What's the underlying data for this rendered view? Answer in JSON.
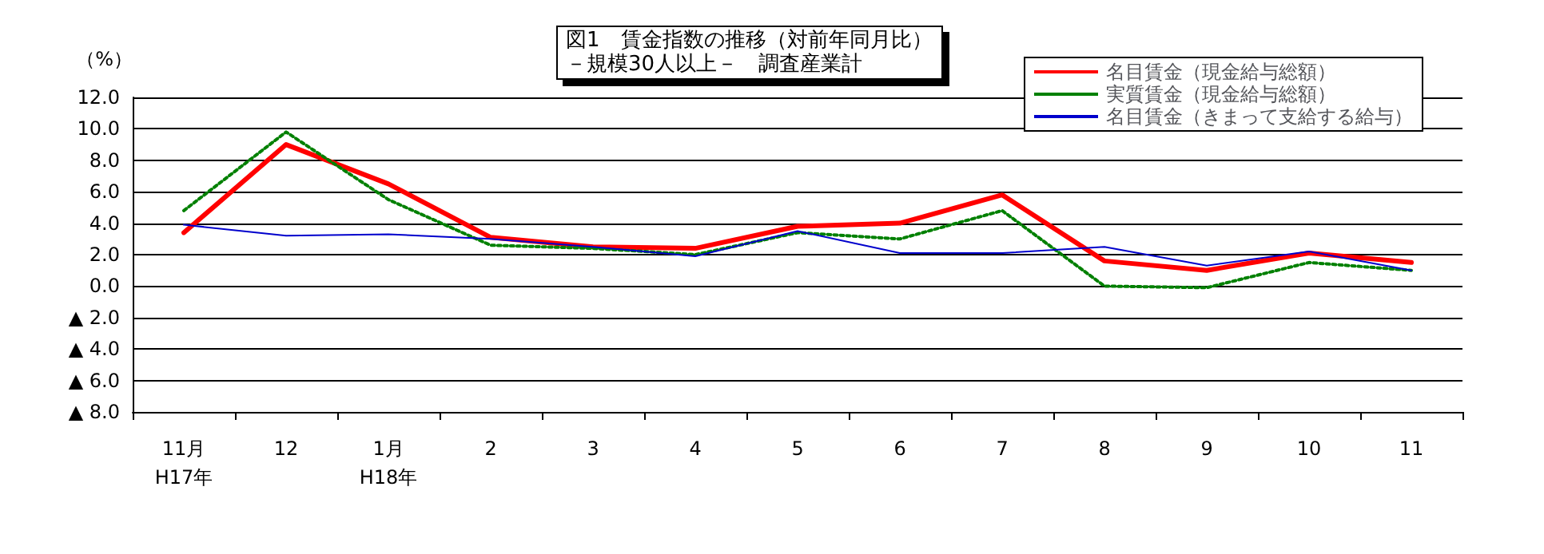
{
  "chart_data": {
    "type": "line",
    "title": "図1　賃金指数の推移（対前年同月比）",
    "subtitle": "－規模30人以上－　調査産業計",
    "ylabel": "（%）",
    "categories": [
      "11月\nH17年",
      "12",
      "1月\nH18年",
      "2",
      "3",
      "4",
      "5",
      "6",
      "7",
      "8",
      "9",
      "10",
      "11"
    ],
    "series": [
      {
        "name": "名目賃金（現金給与総額）",
        "color": "#ff0000",
        "line_style": "solid",
        "values": [
          3.4,
          9.0,
          6.5,
          3.1,
          2.5,
          2.4,
          3.8,
          4.0,
          5.8,
          1.6,
          1.0,
          2.1,
          1.5
        ]
      },
      {
        "name": "実質賃金（現金給与総額）",
        "color": "#008000",
        "line_style": "dotted",
        "values": [
          4.8,
          9.8,
          5.5,
          2.6,
          2.4,
          2.0,
          3.4,
          3.0,
          4.8,
          0.0,
          -0.1,
          1.5,
          1.0
        ]
      },
      {
        "name": "名目賃金（きまって支給する給与）",
        "color": "#0000cc",
        "line_style": "solid",
        "values": [
          3.9,
          3.2,
          3.3,
          3.0,
          2.5,
          1.9,
          3.5,
          2.1,
          2.1,
          2.5,
          1.3,
          2.2,
          1.0
        ]
      }
    ],
    "ylim": [
      -8,
      12
    ],
    "yticks": [
      {
        "value": 12,
        "label": "12.0"
      },
      {
        "value": 10,
        "label": "10.0"
      },
      {
        "value": 8,
        "label": "8.0"
      },
      {
        "value": 6,
        "label": "6.0"
      },
      {
        "value": 4,
        "label": "4.0"
      },
      {
        "value": 2,
        "label": "2.0"
      },
      {
        "value": 0,
        "label": "0.0"
      },
      {
        "value": -2,
        "label": "▲ 2.0"
      },
      {
        "value": -4,
        "label": "▲ 4.0"
      },
      {
        "value": -6,
        "label": "▲ 6.0"
      },
      {
        "value": -8,
        "label": "▲ 8.0"
      }
    ],
    "grid": "y",
    "legend": "top right",
    "marker": "none"
  }
}
